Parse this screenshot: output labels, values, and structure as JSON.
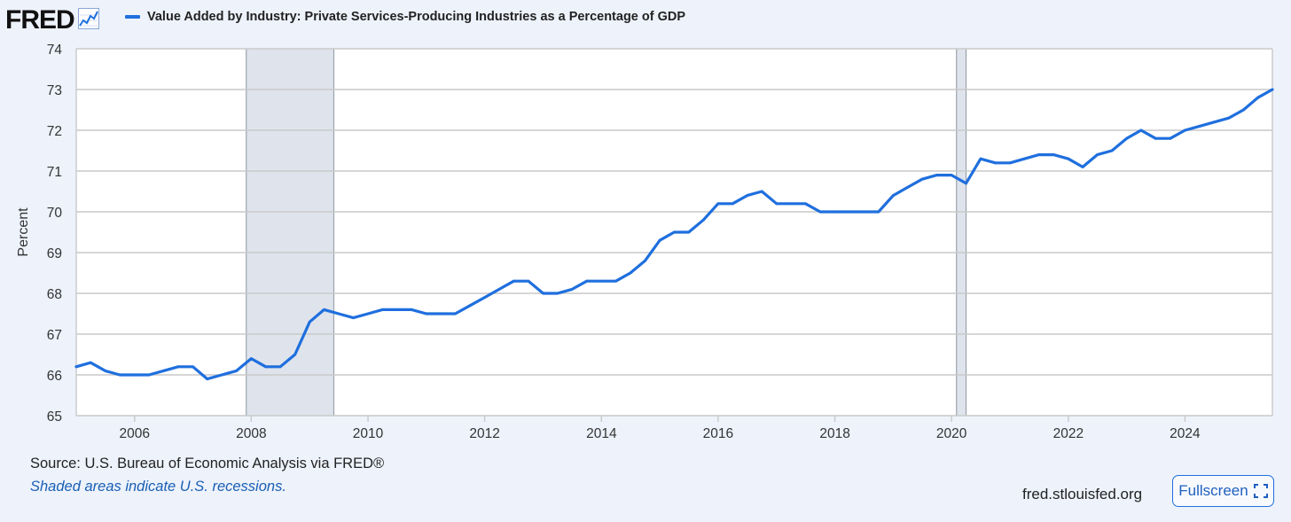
{
  "header": {
    "logo_text": "FRED",
    "logo_icon": "line-chart-icon"
  },
  "legend": {
    "label": "Value Added by Industry: Private Services-Producing Industries as a Percentage of GDP",
    "color": "#1f6fde"
  },
  "chart_data": {
    "type": "line",
    "title": "Value Added by Industry: Private Services-Producing Industries as a Percentage of GDP",
    "ylabel": "Percent",
    "xlabel": "",
    "ylim": [
      65,
      74
    ],
    "xlim": [
      "2005-01-01",
      "2025-07-01"
    ],
    "grid": true,
    "legend_position": "top-left",
    "yticks": [
      "65",
      "66",
      "67",
      "68",
      "69",
      "70",
      "71",
      "72",
      "73",
      "74"
    ],
    "xticks": [
      "2006",
      "2008",
      "2010",
      "2012",
      "2014",
      "2016",
      "2018",
      "2020",
      "2022",
      "2024"
    ],
    "recessions": [
      {
        "start": "2007-12-01",
        "end": "2009-06-01"
      },
      {
        "start": "2020-02-01",
        "end": "2020-04-01"
      }
    ],
    "series": [
      {
        "name": "Value Added by Industry: Private Services-Producing Industries as a Percentage of GDP",
        "color": "#1f6fde",
        "x": [
          "2005-01-01",
          "2005-04-01",
          "2005-07-01",
          "2005-10-01",
          "2006-01-01",
          "2006-04-01",
          "2006-07-01",
          "2006-10-01",
          "2007-01-01",
          "2007-04-01",
          "2007-07-01",
          "2007-10-01",
          "2008-01-01",
          "2008-04-01",
          "2008-07-01",
          "2008-10-01",
          "2009-01-01",
          "2009-04-01",
          "2009-07-01",
          "2009-10-01",
          "2010-01-01",
          "2010-04-01",
          "2010-07-01",
          "2010-10-01",
          "2011-01-01",
          "2011-04-01",
          "2011-07-01",
          "2011-10-01",
          "2012-01-01",
          "2012-04-01",
          "2012-07-01",
          "2012-10-01",
          "2013-01-01",
          "2013-04-01",
          "2013-07-01",
          "2013-10-01",
          "2014-01-01",
          "2014-04-01",
          "2014-07-01",
          "2014-10-01",
          "2015-01-01",
          "2015-04-01",
          "2015-07-01",
          "2015-10-01",
          "2016-01-01",
          "2016-04-01",
          "2016-07-01",
          "2016-10-01",
          "2017-01-01",
          "2017-04-01",
          "2017-07-01",
          "2017-10-01",
          "2018-01-01",
          "2018-04-01",
          "2018-07-01",
          "2018-10-01",
          "2019-01-01",
          "2019-04-01",
          "2019-07-01",
          "2019-10-01",
          "2020-01-01",
          "2020-04-01",
          "2020-07-01",
          "2020-10-01",
          "2021-01-01",
          "2021-04-01",
          "2021-07-01",
          "2021-10-01",
          "2022-01-01",
          "2022-04-01",
          "2022-07-01",
          "2022-10-01",
          "2023-01-01",
          "2023-04-01",
          "2023-07-01",
          "2023-10-01",
          "2024-01-01",
          "2024-04-01",
          "2024-07-01",
          "2024-10-01",
          "2025-01-01",
          "2025-04-01",
          "2025-07-01"
        ],
        "values": [
          66.2,
          66.3,
          66.1,
          66.0,
          66.0,
          66.0,
          66.1,
          66.2,
          66.2,
          65.9,
          66.0,
          66.1,
          66.4,
          66.2,
          66.2,
          66.5,
          67.3,
          67.6,
          67.5,
          67.4,
          67.5,
          67.6,
          67.6,
          67.6,
          67.5,
          67.5,
          67.5,
          67.7,
          67.9,
          68.1,
          68.3,
          68.3,
          68.0,
          68.0,
          68.1,
          68.3,
          68.3,
          68.3,
          68.5,
          68.8,
          69.3,
          69.5,
          69.5,
          69.8,
          70.2,
          70.2,
          70.4,
          70.5,
          70.2,
          70.2,
          70.2,
          70.0,
          70.0,
          70.0,
          70.0,
          70.0,
          70.4,
          70.6,
          70.8,
          70.9,
          70.9,
          70.7,
          71.3,
          71.2,
          71.2,
          71.3,
          71.4,
          71.4,
          71.3,
          71.1,
          71.4,
          71.5,
          71.8,
          72.0,
          71.8,
          71.8,
          72.0,
          72.1,
          72.2,
          72.3,
          72.5,
          72.8,
          73.0
        ]
      }
    ]
  },
  "footer": {
    "source": "Source: U.S. Bureau of Economic Analysis via FRED®",
    "recession_note": "Shaded areas indicate U.S. recessions.",
    "site": "fred.stlouisfed.org",
    "fullscreen_label": "Fullscreen",
    "fullscreen_icon": "expand-icon"
  }
}
